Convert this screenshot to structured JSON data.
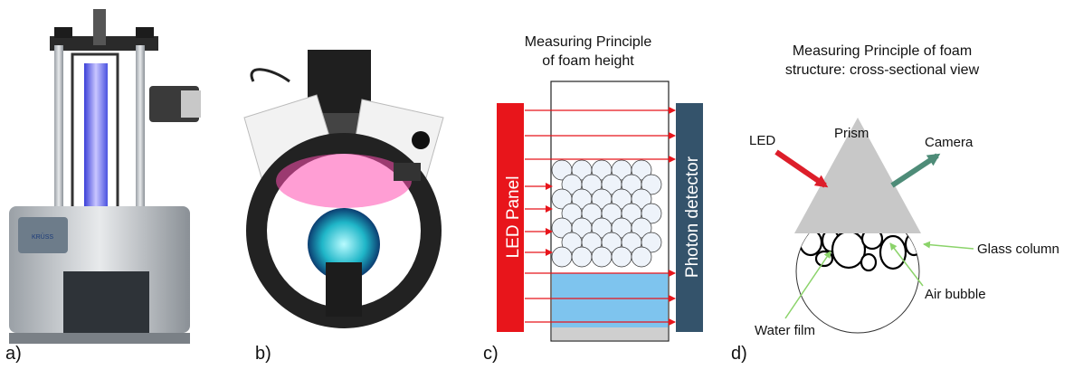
{
  "panels": {
    "a": {
      "label": "a)"
    },
    "b": {
      "label": "b)"
    },
    "c": {
      "label": "c)",
      "title_line1": "Measuring Principle",
      "title_line2": "of foam height",
      "led_text": "LED Panel",
      "detector_text": "Photon detector"
    },
    "d": {
      "label": "d)",
      "title_line1": "Measuring Principle of foam",
      "title_line2": "structure: cross-sectional view",
      "led": "LED",
      "prism": "Prism",
      "camera": "Camera",
      "glass_column": "Glass column",
      "air_bubble": "Air bubble",
      "water_film": "Water film"
    },
    "device_a": {
      "brand": "KRÜSS"
    }
  },
  "colors": {
    "led_red": "#e8151b",
    "detector_blue": "#34536b",
    "liquid_blue": "#7ec4ee",
    "arrow_red": "#dd1e2a",
    "camera_green": "#4e8c78",
    "leader_green": "#8bd36a",
    "prism_gray": "#c8c8c8"
  }
}
